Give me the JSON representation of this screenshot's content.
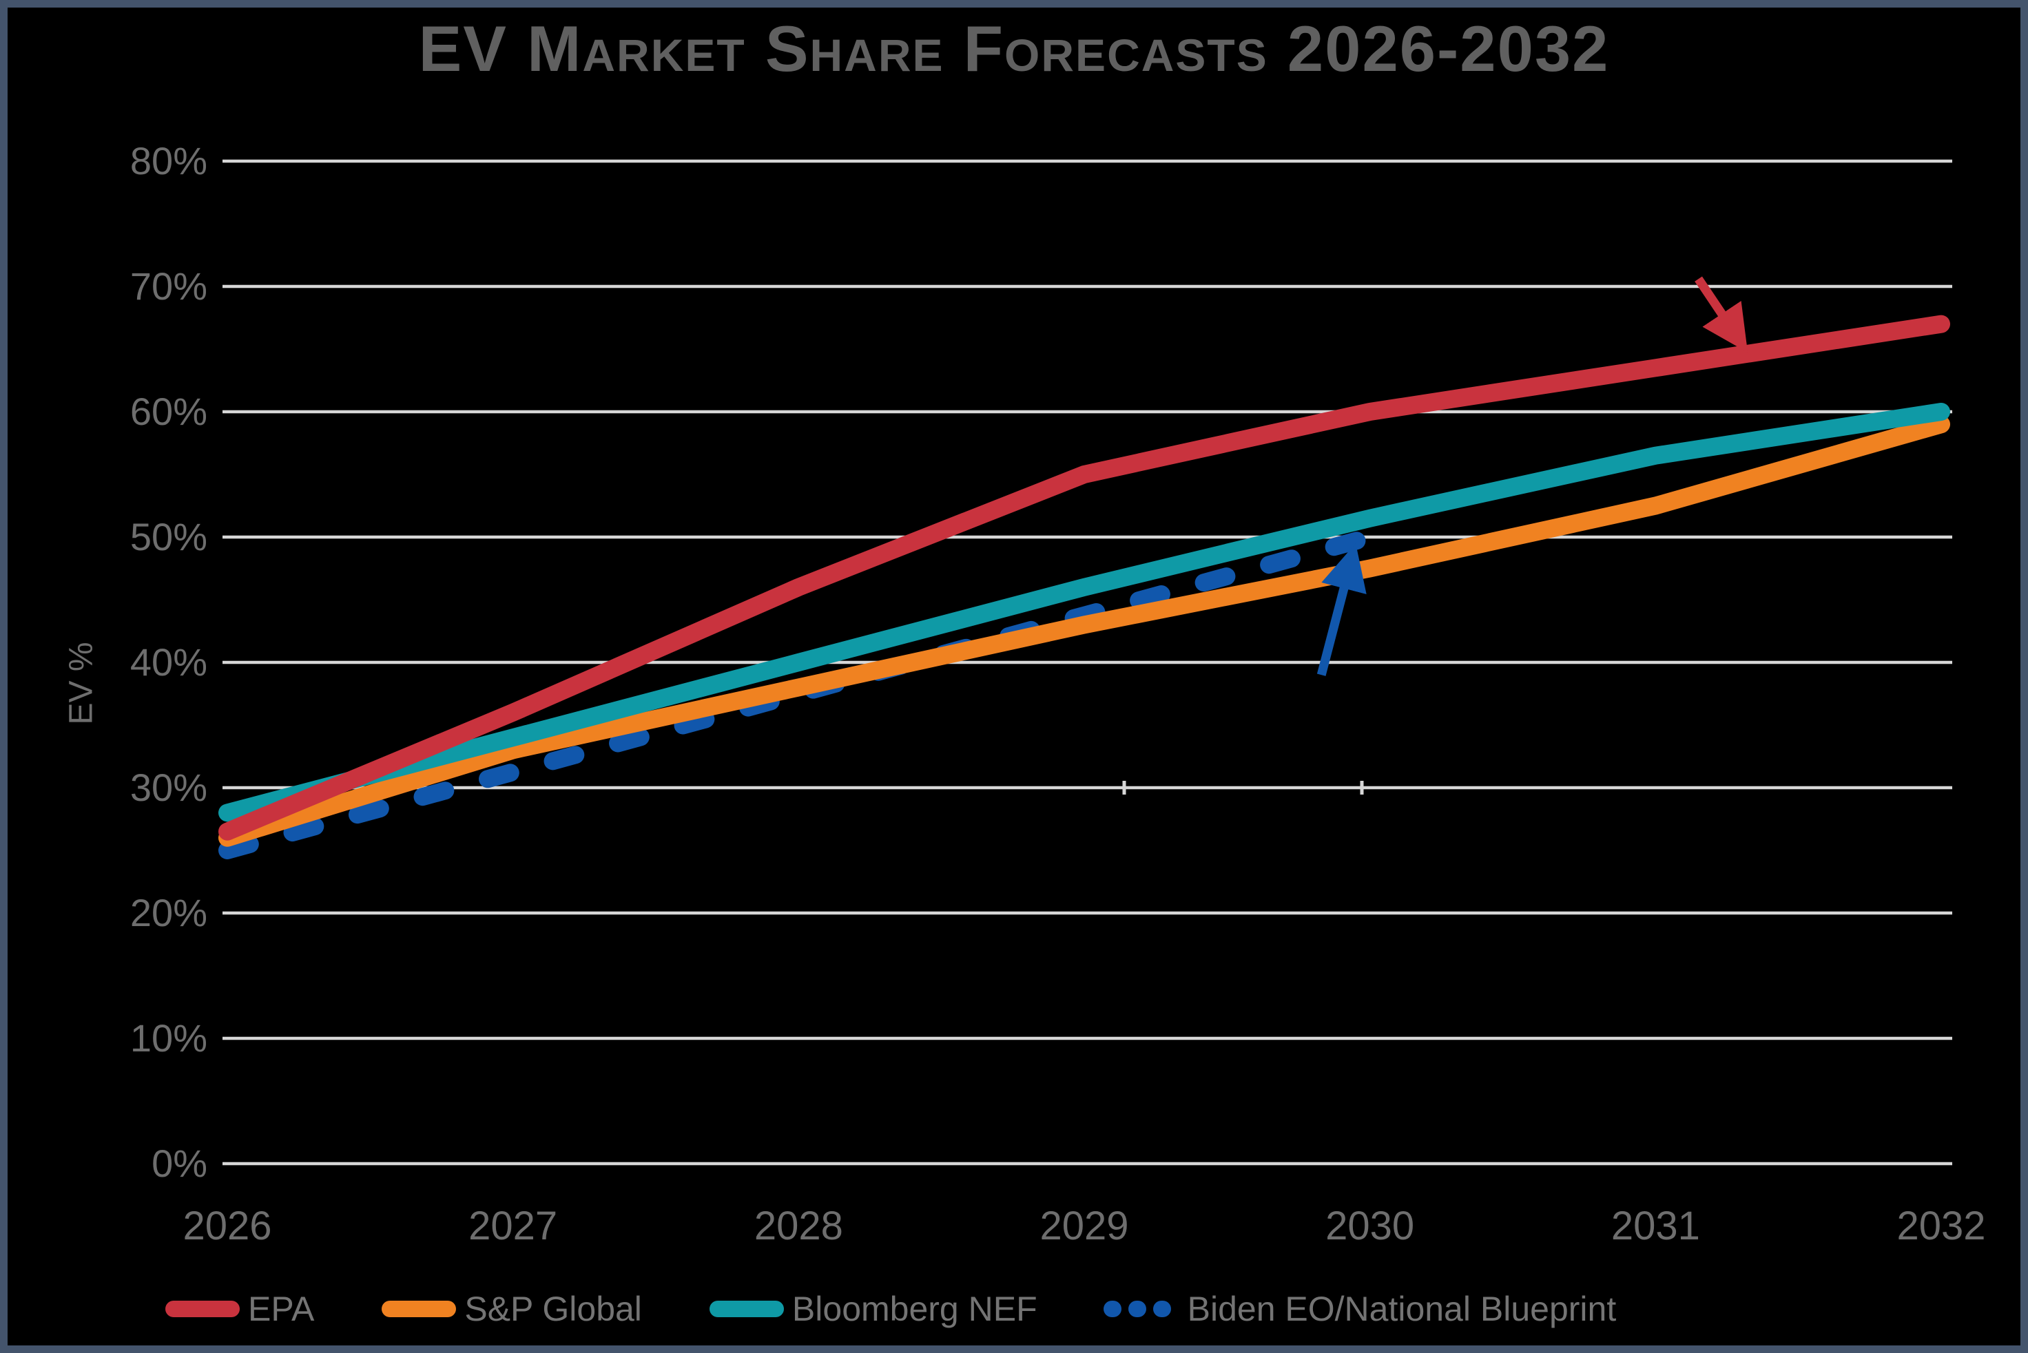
{
  "frame": {
    "border_color": "#44546c",
    "background": "#000000"
  },
  "title": "EV Market Share Forecasts 2026-2032",
  "chart_data": {
    "type": "line",
    "title": "EV Market Share Forecasts 2026-2032",
    "xlabel": "",
    "ylabel": "EV %",
    "x_labels": [
      "2026",
      "2027",
      "2028",
      "2029",
      "2030",
      "2031",
      "2032"
    ],
    "y_tick_labels": [
      "0%",
      "10%",
      "20%",
      "30%",
      "40%",
      "50%",
      "60%",
      "70%",
      "80%"
    ],
    "y_tick_step": 10,
    "ylim": [
      0,
      80
    ],
    "grid": "horizontal",
    "gridline_color": "#d7d7d7",
    "axis_text_color": "#6e6e6e",
    "title_text_color": "#606060",
    "legend_text_color": "#747474",
    "legend_position": "bottom",
    "background": "#000000",
    "series": [
      {
        "name": "EPA",
        "color": "#c9333e",
        "line_style": "solid",
        "values": [
          26.5,
          36,
          46,
          55,
          60,
          63.5,
          67
        ]
      },
      {
        "name": "S&P Global",
        "color": "#f08221",
        "line_style": "solid",
        "values": [
          26,
          33,
          38,
          43,
          47.5,
          52.5,
          59
        ]
      },
      {
        "name": "Bloomberg NEF",
        "color": "#0f9aa6",
        "line_style": "solid",
        "values": [
          28,
          34,
          40,
          46,
          51.5,
          56.5,
          60
        ]
      },
      {
        "name": "Biden EO/National Blueprint",
        "color": "#1157ac",
        "line_style": "dashed",
        "values": [
          25,
          31.25,
          37.5,
          43.75,
          50,
          null,
          null
        ]
      }
    ],
    "annotations": [
      {
        "id": "epa-arrow",
        "description": "red arrow pointing down-right at EPA line between 2031 and 2032",
        "color": "#c9333e",
        "from_x": 2031.15,
        "from_y": 70.6,
        "to_x": 2031.3,
        "to_y": 65.5
      },
      {
        "id": "biden-arrow",
        "description": "blue arrow pointing up at the 50% endpoint of the Biden EO dashed line at 2030",
        "color": "#1157ac",
        "from_x": 2029.83,
        "from_y": 39.0,
        "to_x": 2029.94,
        "to_y": 48.6
      }
    ]
  }
}
